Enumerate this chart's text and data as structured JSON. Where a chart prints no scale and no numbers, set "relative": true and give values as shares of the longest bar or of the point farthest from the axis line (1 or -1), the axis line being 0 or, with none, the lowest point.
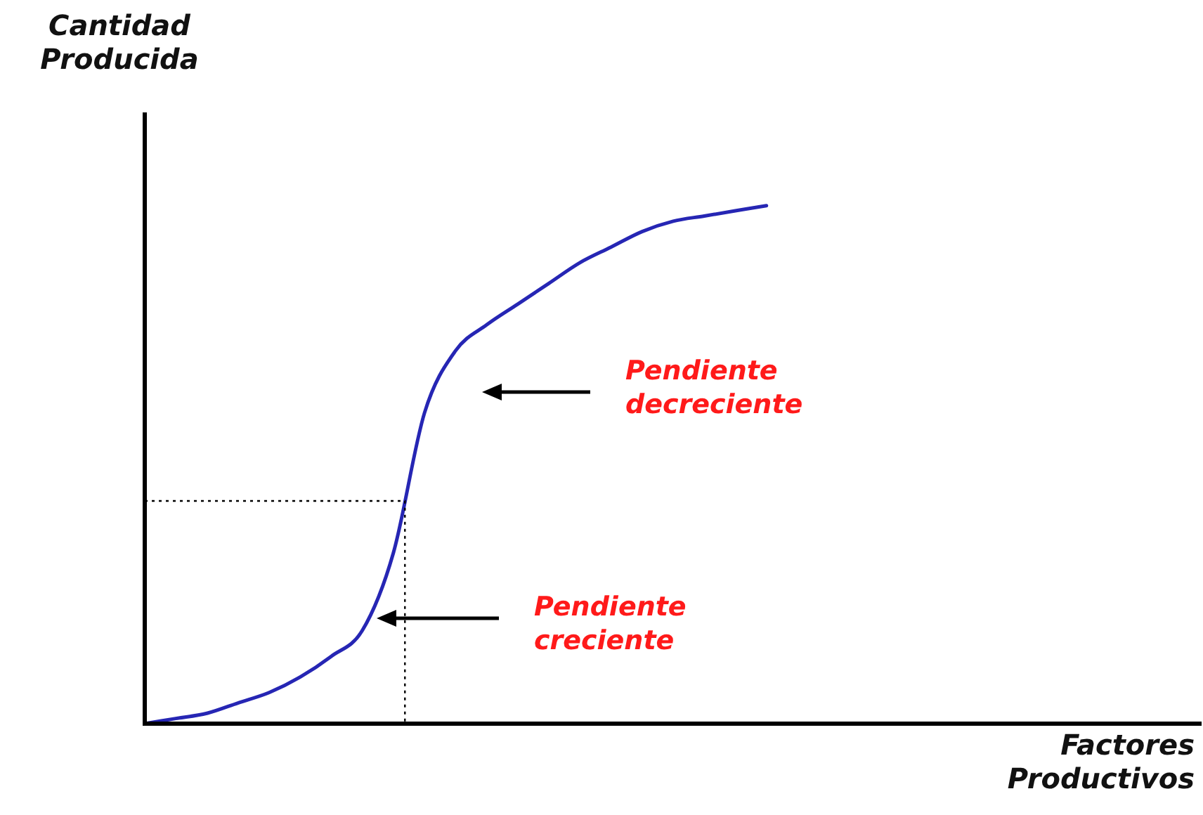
{
  "chart_data": {
    "type": "line",
    "relative": true,
    "xlabel": "Factores Productivos",
    "ylabel": "Cantidad Producida",
    "categories": [
      null,
      null,
      null,
      null,
      null,
      null,
      null,
      null,
      null,
      null,
      null,
      null,
      null,
      null,
      null,
      null,
      null,
      null,
      null,
      null,
      null,
      null,
      null,
      null,
      null,
      null,
      null,
      null,
      null,
      null,
      null,
      null,
      null,
      null,
      null
    ],
    "series": [
      {
        "color": "#2626b4",
        "values": [
          0,
          0.01,
          0.02,
          0.04,
          0.06,
          0.09,
          0.13,
          0.18,
          0.33,
          0.6,
          0.72,
          0.77,
          0.81,
          0.85,
          0.89,
          0.92,
          0.95,
          0.97,
          0.98,
          0.99,
          1,
          null,
          null,
          null,
          null,
          null,
          null,
          null,
          null,
          null,
          null,
          null,
          null,
          null,
          null
        ]
      }
    ],
    "ref_lines": [
      {
        "axis": "y",
        "value": 0.43,
        "line_style": "dotted",
        "color": "#000000"
      }
    ],
    "annotations": [
      "Pendiente decreciente",
      "Pendiente creciente"
    ],
    "marker": "none",
    "line_style": "solid",
    "legend": false,
    "tick_labels": false
  }
}
